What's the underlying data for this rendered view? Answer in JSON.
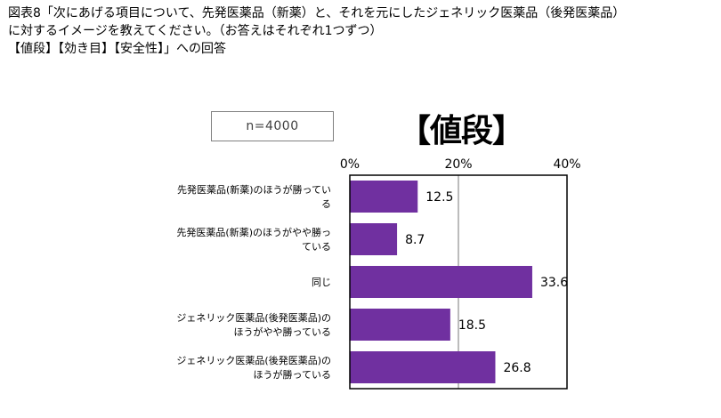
{
  "header": {
    "line1": "図表8「次にあげる項目について、先発医薬品（新薬）と、それを元にしたジェネリック医薬品（後発医薬品）",
    "line2": "に対するイメージを教えてください。（お答えはそれぞれ1つずつ）",
    "line3": "【値段】【効き目】【安全性】」への回答"
  },
  "sample_size": "n=4000",
  "chart_data": {
    "type": "bar",
    "orientation": "horizontal",
    "title": "【値段】",
    "categories": [
      [
        "先発医薬品(新薬)のほうが勝ってい",
        "る"
      ],
      [
        "先発医薬品(新薬)のほうがやや勝っ",
        "ている"
      ],
      [
        "同じ"
      ],
      [
        "ジェネリック医薬品(後発医薬品)の",
        "ほうがやや勝っている"
      ],
      [
        "ジェネリック医薬品(後発医薬品)の",
        "ほうが勝っている"
      ]
    ],
    "values": [
      12.5,
      8.7,
      33.6,
      18.5,
      26.8
    ],
    "value_labels": [
      "12.5",
      "8.7",
      "33.6",
      "18.5",
      "26.8"
    ],
    "xlim": [
      0,
      40
    ],
    "ticks": [
      0,
      20,
      40
    ],
    "tick_labels": [
      "0%",
      "20%",
      "40%"
    ],
    "gridlines_at": [
      20
    ],
    "bar_color": "#7030a0",
    "grid_color": "#a6a6a6",
    "label_position": "outside-end"
  }
}
